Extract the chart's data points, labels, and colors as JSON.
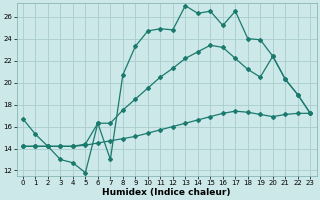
{
  "xlabel": "Humidex (Indice chaleur)",
  "bg_color": "#cce8e8",
  "grid_color": "#aacccc",
  "line_color": "#1a7a6e",
  "xlim": [
    -0.5,
    23.5
  ],
  "ylim": [
    11.5,
    27.2
  ],
  "xticks": [
    0,
    1,
    2,
    3,
    4,
    5,
    6,
    7,
    8,
    9,
    10,
    11,
    12,
    13,
    14,
    15,
    16,
    17,
    18,
    19,
    20,
    21,
    22,
    23
  ],
  "yticks": [
    12,
    14,
    16,
    18,
    20,
    22,
    24,
    26
  ],
  "line1_x": [
    0,
    1,
    2,
    3,
    4,
    5,
    6,
    7,
    8,
    9,
    10,
    11,
    12,
    13,
    14,
    15,
    16,
    17,
    18,
    19,
    20,
    21,
    22,
    23
  ],
  "line1_y": [
    16.7,
    15.3,
    14.2,
    13.0,
    12.7,
    11.8,
    16.3,
    13.0,
    20.7,
    23.3,
    24.7,
    24.9,
    24.8,
    27.0,
    26.3,
    26.5,
    25.2,
    26.5,
    24.0,
    23.9,
    22.4,
    20.3,
    18.9,
    17.2
  ],
  "line2_x": [
    0,
    1,
    2,
    3,
    4,
    5,
    6,
    7,
    8,
    9,
    10,
    11,
    12,
    13,
    14,
    15,
    16,
    17,
    18,
    19,
    20,
    21,
    22,
    23
  ],
  "line2_y": [
    14.2,
    14.2,
    14.2,
    14.2,
    14.2,
    14.4,
    16.3,
    16.3,
    17.5,
    18.5,
    19.5,
    20.5,
    21.3,
    22.2,
    22.8,
    23.4,
    23.2,
    22.2,
    21.2,
    20.5,
    22.4,
    20.3,
    18.9,
    17.2
  ],
  "line3_x": [
    0,
    1,
    2,
    3,
    4,
    5,
    6,
    7,
    8,
    9,
    10,
    11,
    12,
    13,
    14,
    15,
    16,
    17,
    18,
    19,
    20,
    21,
    22,
    23
  ],
  "line3_y": [
    14.2,
    14.2,
    14.2,
    14.2,
    14.2,
    14.3,
    14.5,
    14.7,
    14.9,
    15.1,
    15.4,
    15.7,
    16.0,
    16.3,
    16.6,
    16.9,
    17.2,
    17.4,
    17.3,
    17.1,
    16.9,
    17.1,
    17.2,
    17.2
  ]
}
